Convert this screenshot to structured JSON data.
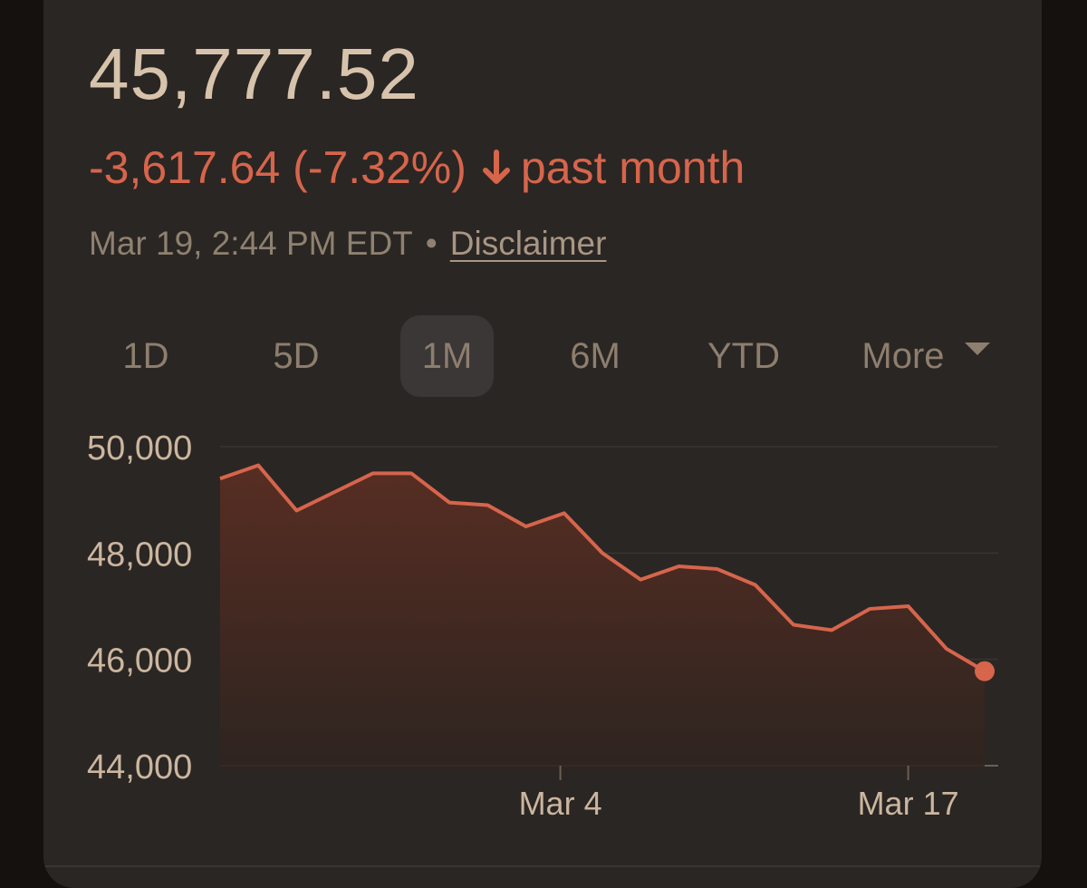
{
  "header": {
    "price": "45,777.52",
    "change": "-3,617.64 (-7.32%)",
    "period": "past month",
    "timestamp": "Mar 19, 2:44 PM EDT",
    "separator": "•",
    "disclaimer": "Disclaimer"
  },
  "tabs": [
    {
      "label": "1D"
    },
    {
      "label": "5D"
    },
    {
      "label": "1M",
      "active": true
    },
    {
      "label": "6M"
    },
    {
      "label": "YTD"
    },
    {
      "label": "More"
    }
  ],
  "colors": {
    "accent_negative": "#d6654c",
    "card_bg": "#2a2623",
    "text_primary": "#d7c3ac",
    "text_muted": "#8f8170"
  },
  "chart_data": {
    "type": "area",
    "x_tick_labels": [
      "Mar 4",
      "Mar 17"
    ],
    "y_tick_labels": [
      "50,000",
      "48,000",
      "46,000",
      "44,000"
    ],
    "y_ticks": [
      50000,
      48000,
      46000,
      44000
    ],
    "ylim": [
      44000,
      50000
    ],
    "grid": true,
    "series": [
      {
        "values": [
          49400,
          49650,
          48800,
          49150,
          49500,
          49500,
          48950,
          48900,
          48500,
          48750,
          48000,
          47500,
          47750,
          47700,
          47400,
          46650,
          46550,
          46950,
          47000,
          46200,
          45777.52
        ]
      }
    ],
    "x_tick_index": [
      8.9,
      18
    ]
  }
}
